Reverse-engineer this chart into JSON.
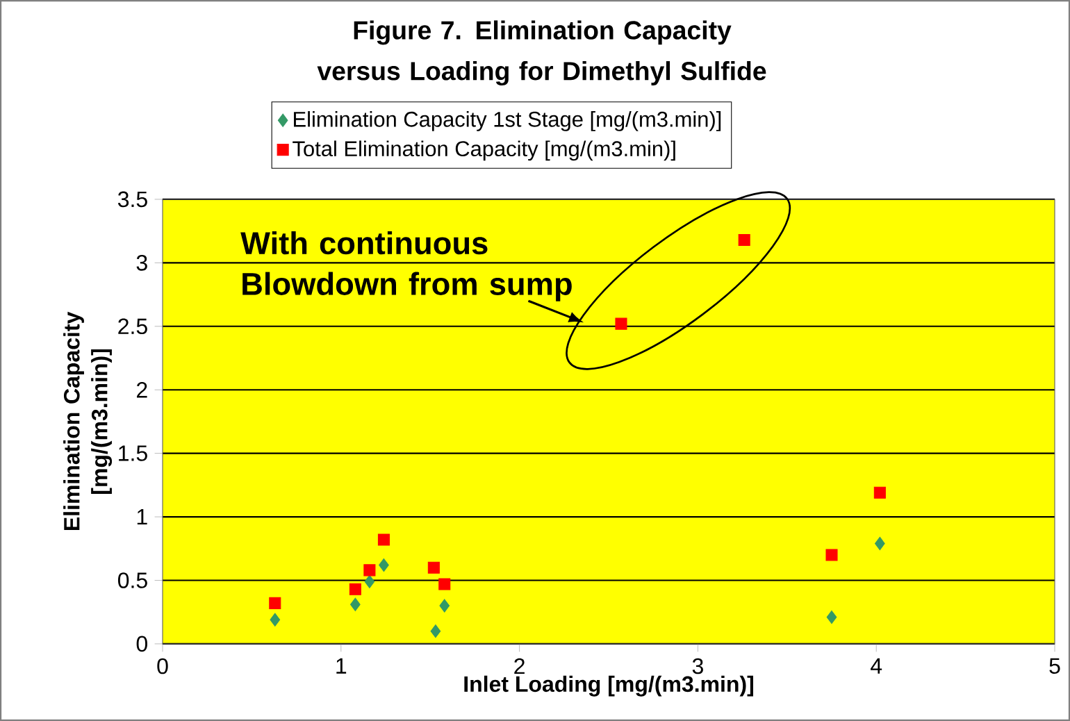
{
  "chart_data": {
    "type": "scatter",
    "title": "Figure 7. Elimination Capacity versus Loading for Dimethyl Sulfide",
    "xlabel": "Inlet Loading [mg/(m3.min)]",
    "ylabel": "Elimination Capacity [mg/(m3.min)]",
    "xlim": [
      0,
      5
    ],
    "xticks": [
      0,
      1,
      2,
      3,
      4,
      5
    ],
    "ylim": [
      0,
      3.5
    ],
    "yticks": [
      0,
      0.5,
      1,
      1.5,
      2,
      2.5,
      3,
      3.5
    ],
    "grid": "y",
    "legend": "top",
    "annotations": [
      "With continuous Blowdown from sump"
    ],
    "series": [
      {
        "name": "Elimination Capacity 1st Stage [mg/(m3.min)]",
        "color": "#339966",
        "marker": "diamond",
        "x": [
          0.63,
          1.08,
          1.16,
          1.24,
          1.53,
          1.58,
          3.75,
          4.02
        ],
        "values": [
          0.19,
          0.31,
          0.49,
          0.62,
          0.1,
          0.3,
          0.21,
          0.79
        ]
      },
      {
        "name": "Total Elimination Capacity [mg/(m3.min)]",
        "color": "#ff0000",
        "marker": "square",
        "x": [
          0.63,
          1.08,
          1.16,
          1.24,
          1.52,
          1.58,
          2.57,
          3.26,
          3.75,
          4.02
        ],
        "values": [
          0.32,
          0.43,
          0.58,
          0.82,
          0.6,
          0.47,
          2.52,
          3.18,
          0.7,
          1.19
        ]
      }
    ]
  }
}
